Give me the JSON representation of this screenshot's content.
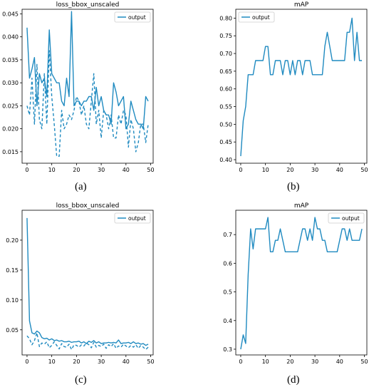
{
  "colors": {
    "series": "#1f8ac0",
    "axis": "#000000"
  },
  "captions": [
    "(a)",
    "(b)",
    "(c)",
    "(d)"
  ],
  "chart_data": [
    {
      "type": "line",
      "title": "loss_bbox_unscaled",
      "xlabel": "",
      "ylabel": "",
      "xlim": [
        -2,
        51
      ],
      "ylim": [
        0.0125,
        0.046
      ],
      "xticks": [
        0,
        10,
        20,
        30,
        40,
        50
      ],
      "yticks": [
        0.015,
        0.02,
        0.025,
        0.03,
        0.035,
        0.04,
        0.045
      ],
      "ytick_labels": [
        "0.015",
        "0.020",
        "0.025",
        "0.030",
        "0.035",
        "0.040",
        "0.045"
      ],
      "legend": "top-right",
      "series": [
        {
          "name": "output",
          "style": "solid",
          "x": [
            0,
            1,
            2,
            3,
            4,
            5,
            6,
            7,
            8,
            9,
            10,
            11,
            12,
            13,
            14,
            15,
            16,
            17,
            18,
            19,
            20,
            21,
            22,
            23,
            24,
            25,
            26,
            27,
            28,
            29,
            30,
            31,
            32,
            33,
            34,
            35,
            36,
            37,
            38,
            39,
            40,
            41,
            42,
            43,
            44,
            45,
            46,
            47,
            48,
            49
          ],
          "y": [
            0.042,
            0.031,
            0.033,
            0.0355,
            0.025,
            0.032,
            0.03,
            0.031,
            0.027,
            0.0415,
            0.032,
            0.031,
            0.03,
            0.03,
            0.026,
            0.025,
            0.031,
            0.027,
            0.0455,
            0.025,
            0.026,
            0.026,
            0.025,
            0.026,
            0.026,
            0.027,
            0.027,
            0.024,
            0.029,
            0.025,
            0.027,
            0.024,
            0.023,
            0.023,
            0.021,
            0.03,
            0.028,
            0.025,
            0.026,
            0.027,
            0.02,
            0.021,
            0.026,
            0.024,
            0.022,
            0.021,
            0.021,
            0.02,
            0.027,
            0.026
          ]
        },
        {
          "name": "",
          "style": "dashed",
          "x": [
            0,
            1,
            2,
            3,
            4,
            5,
            6,
            7,
            8,
            9,
            10,
            11,
            12,
            13,
            14,
            15,
            16,
            17,
            18,
            19,
            20,
            21,
            22,
            23,
            24,
            25,
            26,
            27,
            28,
            29,
            30,
            31,
            32,
            33,
            34,
            35,
            36,
            37,
            38,
            39,
            40,
            41,
            42,
            43,
            44,
            45,
            46,
            47,
            48,
            49
          ],
          "y": [
            0.025,
            0.023,
            0.031,
            0.021,
            0.034,
            0.022,
            0.02,
            0.032,
            0.021,
            0.037,
            0.027,
            0.021,
            0.014,
            0.014,
            0.024,
            0.02,
            0.021,
            0.023,
            0.022,
            0.024,
            0.027,
            0.026,
            0.023,
            0.025,
            0.021,
            0.02,
            0.026,
            0.032,
            0.021,
            0.024,
            0.018,
            0.024,
            0.023,
            0.02,
            0.023,
            0.018,
            0.018,
            0.023,
            0.021,
            0.024,
            0.023,
            0.016,
            0.022,
            0.02,
            0.015,
            0.017,
            0.021,
            0.021,
            0.017,
            0.021
          ]
        }
      ]
    },
    {
      "type": "line",
      "title": "mAP",
      "xlabel": "",
      "ylabel": "",
      "xlim": [
        -2,
        51
      ],
      "ylim": [
        0.39,
        0.825
      ],
      "xticks": [
        0,
        10,
        20,
        30,
        40,
        50
      ],
      "yticks": [
        0.4,
        0.45,
        0.5,
        0.55,
        0.6,
        0.65,
        0.7,
        0.75,
        0.8
      ],
      "ytick_labels": [
        "0.40",
        "0.45",
        "0.50",
        "0.55",
        "0.60",
        "0.65",
        "0.70",
        "0.75",
        "0.80"
      ],
      "legend": "top-left",
      "series": [
        {
          "name": "output",
          "style": "solid",
          "x": [
            0,
            1,
            2,
            3,
            4,
            5,
            6,
            7,
            8,
            9,
            10,
            11,
            12,
            13,
            14,
            15,
            16,
            17,
            18,
            19,
            20,
            21,
            22,
            23,
            24,
            25,
            26,
            27,
            28,
            29,
            30,
            31,
            32,
            33,
            34,
            35,
            36,
            37,
            38,
            39,
            40,
            41,
            42,
            43,
            44,
            45,
            46,
            47,
            48,
            49
          ],
          "y": [
            0.41,
            0.51,
            0.55,
            0.64,
            0.64,
            0.64,
            0.68,
            0.68,
            0.68,
            0.68,
            0.72,
            0.72,
            0.64,
            0.64,
            0.68,
            0.68,
            0.68,
            0.64,
            0.68,
            0.68,
            0.64,
            0.68,
            0.64,
            0.68,
            0.68,
            0.64,
            0.68,
            0.68,
            0.68,
            0.64,
            0.64,
            0.64,
            0.64,
            0.64,
            0.72,
            0.76,
            0.72,
            0.68,
            0.68,
            0.68,
            0.68,
            0.68,
            0.68,
            0.76,
            0.76,
            0.8,
            0.68,
            0.76,
            0.68,
            0.68
          ]
        }
      ]
    },
    {
      "type": "line",
      "title": "loss_bbox_unscaled",
      "xlabel": "",
      "ylabel": "",
      "xlim": [
        -2,
        51
      ],
      "ylim": [
        0.008,
        0.25
      ],
      "xticks": [
        0,
        10,
        20,
        30,
        40,
        50
      ],
      "yticks": [
        0.05,
        0.1,
        0.15,
        0.2
      ],
      "ytick_labels": [
        "0.05",
        "0.10",
        "0.15",
        "0.20"
      ],
      "legend": "top-right",
      "series": [
        {
          "name": "output",
          "style": "solid",
          "x": [
            0,
            1,
            2,
            3,
            4,
            5,
            6,
            7,
            8,
            9,
            10,
            11,
            12,
            13,
            14,
            15,
            16,
            17,
            18,
            19,
            20,
            21,
            22,
            23,
            24,
            25,
            26,
            27,
            28,
            29,
            30,
            31,
            32,
            33,
            34,
            35,
            36,
            37,
            38,
            39,
            40,
            41,
            42,
            43,
            44,
            45,
            46,
            47,
            48,
            49
          ],
          "y": [
            0.237,
            0.065,
            0.045,
            0.043,
            0.048,
            0.045,
            0.037,
            0.035,
            0.036,
            0.033,
            0.035,
            0.032,
            0.033,
            0.031,
            0.032,
            0.03,
            0.03,
            0.031,
            0.029,
            0.03,
            0.03,
            0.031,
            0.028,
            0.03,
            0.027,
            0.031,
            0.029,
            0.032,
            0.028,
            0.03,
            0.027,
            0.028,
            0.028,
            0.029,
            0.028,
            0.029,
            0.028,
            0.033,
            0.027,
            0.028,
            0.028,
            0.029,
            0.027,
            0.03,
            0.027,
            0.028,
            0.026,
            0.027,
            0.024,
            0.026
          ]
        },
        {
          "name": "",
          "style": "dashed",
          "x": [
            0,
            1,
            2,
            3,
            4,
            5,
            6,
            7,
            8,
            9,
            10,
            11,
            12,
            13,
            14,
            15,
            16,
            17,
            18,
            19,
            20,
            21,
            22,
            23,
            24,
            25,
            26,
            27,
            28,
            29,
            30,
            31,
            32,
            33,
            34,
            35,
            36,
            37,
            38,
            39,
            40,
            41,
            42,
            43,
            44,
            45,
            46,
            47,
            48,
            49
          ],
          "y": [
            0.04,
            0.035,
            0.025,
            0.032,
            0.045,
            0.022,
            0.028,
            0.026,
            0.03,
            0.02,
            0.024,
            0.03,
            0.024,
            0.018,
            0.027,
            0.022,
            0.021,
            0.026,
            0.017,
            0.025,
            0.024,
            0.021,
            0.025,
            0.023,
            0.028,
            0.025,
            0.02,
            0.029,
            0.021,
            0.024,
            0.022,
            0.026,
            0.019,
            0.025,
            0.022,
            0.027,
            0.019,
            0.023,
            0.021,
            0.026,
            0.023,
            0.02,
            0.024,
            0.021,
            0.025,
            0.019,
            0.024,
            0.021,
            0.017,
            0.021
          ]
        }
      ]
    },
    {
      "type": "line",
      "title": "mAP",
      "xlabel": "",
      "ylabel": "",
      "xlim": [
        -2,
        51
      ],
      "ylim": [
        0.28,
        0.785
      ],
      "xticks": [
        0,
        10,
        20,
        30,
        40,
        50
      ],
      "yticks": [
        0.3,
        0.4,
        0.5,
        0.6,
        0.7
      ],
      "ytick_labels": [
        "0.3",
        "0.4",
        "0.5",
        "0.6",
        "0.7"
      ],
      "legend": "top-right",
      "series": [
        {
          "name": "output",
          "style": "solid",
          "x": [
            0,
            1,
            2,
            3,
            4,
            5,
            6,
            7,
            8,
            9,
            10,
            11,
            12,
            13,
            14,
            15,
            16,
            17,
            18,
            19,
            20,
            21,
            22,
            23,
            24,
            25,
            26,
            27,
            28,
            29,
            30,
            31,
            32,
            33,
            34,
            35,
            36,
            37,
            38,
            39,
            40,
            41,
            42,
            43,
            44,
            45,
            46,
            47,
            48,
            49
          ],
          "y": [
            0.3,
            0.35,
            0.32,
            0.56,
            0.72,
            0.65,
            0.72,
            0.72,
            0.72,
            0.72,
            0.72,
            0.76,
            0.64,
            0.64,
            0.68,
            0.68,
            0.72,
            0.68,
            0.64,
            0.64,
            0.64,
            0.64,
            0.64,
            0.64,
            0.68,
            0.72,
            0.72,
            0.68,
            0.72,
            0.68,
            0.76,
            0.72,
            0.72,
            0.68,
            0.68,
            0.64,
            0.64,
            0.64,
            0.64,
            0.64,
            0.68,
            0.72,
            0.72,
            0.68,
            0.72,
            0.68,
            0.68,
            0.68,
            0.68,
            0.72
          ]
        }
      ]
    }
  ]
}
